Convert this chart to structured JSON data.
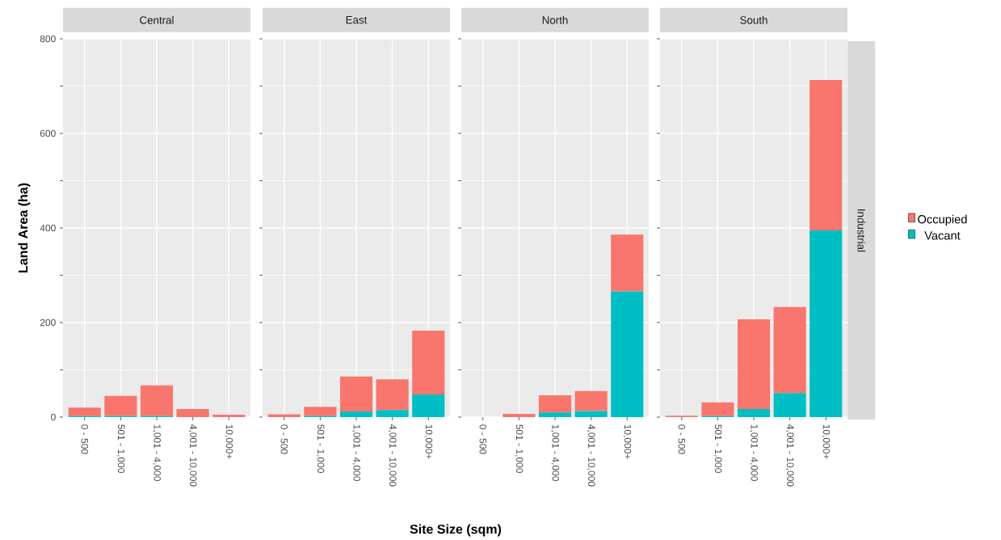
{
  "chart_data": [
    {
      "type": "bar",
      "title": "Central",
      "ylabel": "Land Area (ha)",
      "stacked": true,
      "grid": true,
      "categories": [
        "0 - 500",
        "501 - 1,000",
        "1,001 - 4,000",
        "4,001 - 10,000",
        "10,000+"
      ],
      "ylim": [
        0,
        800
      ],
      "yticks": [
        0,
        200,
        400,
        600,
        800
      ],
      "series": [
        {
          "color": "#00bfc4",
          "values": [
            2,
            2,
            2,
            0,
            0
          ]
        },
        {
          "color": "#f8766d",
          "values": [
            18,
            43,
            65,
            17,
            5
          ]
        }
      ]
    },
    {
      "type": "bar",
      "title": "East",
      "xlabel": "Site Size (sqm)",
      "stacked": true,
      "grid": true,
      "tick_labels": "x",
      "categories": [
        "0 - 500",
        "501 - 1,000",
        "1,001 - 4,000",
        "4,001 - 10,000",
        "10,000+"
      ],
      "ylim": [
        0,
        800
      ],
      "yticks": [
        0,
        200,
        400,
        600,
        800
      ],
      "series": [
        {
          "color": "#00bfc4",
          "values": [
            0,
            2,
            12,
            15,
            48
          ]
        },
        {
          "color": "#f8766d",
          "values": [
            6,
            20,
            74,
            65,
            135
          ]
        }
      ]
    },
    {
      "type": "bar",
      "title": "North",
      "stacked": true,
      "grid": true,
      "tick_labels": "x",
      "categories": [
        "0 - 500",
        "501 - 1,000",
        "1,001 - 4,000",
        "4,001 - 10,000",
        "10,000+"
      ],
      "ylim": [
        0,
        800
      ],
      "yticks": [
        0,
        200,
        400,
        600,
        800
      ],
      "series": [
        {
          "color": "#00bfc4",
          "values": [
            0,
            0,
            10,
            13,
            266
          ]
        },
        {
          "color": "#f8766d",
          "values": [
            0,
            7,
            36,
            42,
            120
          ]
        }
      ]
    },
    {
      "type": "bar",
      "title": "South",
      "stacked": true,
      "grid": true,
      "tick_labels": "x",
      "legend": "right",
      "annotations": [
        "Industrial"
      ],
      "categories": [
        "0 - 500",
        "501 - 1,000",
        "1,001 - 4,000",
        "4,001 - 10,000",
        "10,000+"
      ],
      "ylim": [
        0,
        800
      ],
      "yticks": [
        0,
        200,
        400,
        600,
        800
      ],
      "series": [
        {
          "name": "Vacant",
          "color": "#00bfc4",
          "values": [
            0,
            2,
            17,
            51,
            395
          ]
        },
        {
          "name": "Occupied",
          "color": "#f8766d",
          "values": [
            3,
            29,
            190,
            182,
            318
          ]
        }
      ]
    }
  ]
}
